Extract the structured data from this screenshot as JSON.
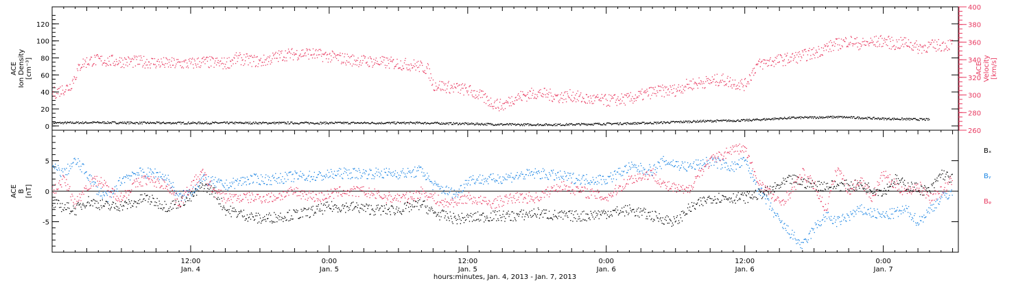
{
  "colors": {
    "density": "#000000",
    "velocity": "#e8385f",
    "bx": "#000000",
    "by": "#1a84e3",
    "bz": "#e8385f",
    "axis": "#000000"
  },
  "chart_data": [
    {
      "type": "scatter",
      "panel": "top",
      "xlabel": "hours:minutes, Jan.  4, 2013 - Jan.  7, 2013",
      "x_ticks": [
        {
          "hours": 12,
          "time": "12:00",
          "date": "Jan. 4"
        },
        {
          "hours": 24,
          "time": "0:00",
          "date": "Jan. 5"
        },
        {
          "hours": 36,
          "time": "12:00",
          "date": "Jan. 5"
        },
        {
          "hours": 48,
          "time": "0:00",
          "date": "Jan. 6"
        },
        {
          "hours": 60,
          "time": "12:00",
          "date": "Jan. 6"
        },
        {
          "hours": 72,
          "time": "0:00",
          "date": "Jan. 7"
        }
      ],
      "x_range_hours": [
        0,
        78.5
      ],
      "left_axis": {
        "label_lines": [
          "ACE",
          "Ion Density",
          "[cm⁻³]"
        ],
        "ylim": [
          -5,
          140
        ],
        "ticks": [
          0,
          20,
          40,
          60,
          80,
          100,
          120
        ]
      },
      "right_axis": {
        "label_lines": [
          "ACE",
          "Velocity",
          "[km/s]"
        ],
        "ylim": [
          260,
          400
        ],
        "ticks": [
          260,
          280,
          300,
          320,
          340,
          360,
          380,
          400
        ]
      },
      "series": [
        {
          "key": "density",
          "axis": "left",
          "points": [
            [
              0,
              4
            ],
            [
              4,
              4.5
            ],
            [
              8,
              4
            ],
            [
              12,
              4
            ],
            [
              16,
              4
            ],
            [
              20,
              4
            ],
            [
              24,
              4
            ],
            [
              28,
              4
            ],
            [
              32,
              4
            ],
            [
              36,
              3
            ],
            [
              40,
              2
            ],
            [
              44,
              2
            ],
            [
              48,
              3
            ],
            [
              52,
              4
            ],
            [
              56,
              6
            ],
            [
              60,
              7
            ],
            [
              64,
              10
            ],
            [
              68,
              11
            ],
            [
              72,
              9
            ],
            [
              76,
              8
            ]
          ]
        },
        {
          "key": "velocity",
          "axis": "right",
          "points": [
            [
              0,
              302
            ],
            [
              1.5,
              310
            ],
            [
              2.5,
              336
            ],
            [
              3.5,
              340
            ],
            [
              5,
              339
            ],
            [
              7,
              338
            ],
            [
              8,
              338
            ],
            [
              10,
              336
            ],
            [
              12,
              336
            ],
            [
              13,
              338
            ],
            [
              15,
              336
            ],
            [
              16,
              342
            ],
            [
              18,
              338
            ],
            [
              20,
              346
            ],
            [
              22,
              348
            ],
            [
              24,
              344
            ],
            [
              26,
              340
            ],
            [
              28,
              338
            ],
            [
              30,
              336
            ],
            [
              31.5,
              334
            ],
            [
              32.5,
              330
            ],
            [
              33,
              312
            ],
            [
              35,
              308
            ],
            [
              36,
              306
            ],
            [
              37,
              300
            ],
            [
              38,
              292
            ],
            [
              39,
              288
            ],
            [
              40,
              297
            ],
            [
              41,
              300
            ],
            [
              42,
              303
            ],
            [
              44,
              298
            ],
            [
              45,
              300
            ],
            [
              46,
              296
            ],
            [
              48,
              294
            ],
            [
              50,
              296
            ],
            [
              52,
              304
            ],
            [
              54,
              306
            ],
            [
              55,
              312
            ],
            [
              57,
              316
            ],
            [
              58,
              318
            ],
            [
              59,
              314
            ],
            [
              60,
              312
            ],
            [
              61,
              334
            ],
            [
              62,
              338
            ],
            [
              64,
              342
            ],
            [
              66,
              348
            ],
            [
              67,
              354
            ],
            [
              69,
              362
            ],
            [
              70,
              358
            ],
            [
              71,
              360
            ],
            [
              72,
              362
            ],
            [
              73,
              358
            ],
            [
              74,
              360
            ],
            [
              75,
              354
            ],
            [
              76,
              356
            ],
            [
              78,
              358
            ]
          ]
        }
      ]
    },
    {
      "type": "scatter",
      "panel": "bottom",
      "xlabel": "hours:minutes, Jan.  4, 2013 - Jan.  7, 2013",
      "x_range_hours": [
        0,
        78.5
      ],
      "left_axis": {
        "label_lines": [
          "ACE",
          "B",
          "[nT]"
        ],
        "ylim": [
          -10,
          10
        ],
        "ticks": [
          -5,
          0,
          5
        ]
      },
      "legend": [
        "Bₓ",
        "Bᵧ",
        "Bᵩ"
      ],
      "series": [
        {
          "key": "bx",
          "points": [
            [
              0,
              -2
            ],
            [
              2,
              -3
            ],
            [
              3,
              -1.5
            ],
            [
              5,
              -2.5
            ],
            [
              7,
              -2
            ],
            [
              8,
              -1
            ],
            [
              10,
              -2.5
            ],
            [
              12,
              -1
            ],
            [
              13,
              1
            ],
            [
              14,
              0
            ],
            [
              15,
              -3
            ],
            [
              17,
              -4
            ],
            [
              18,
              -4.5
            ],
            [
              20,
              -4
            ],
            [
              22,
              -3.5
            ],
            [
              24,
              -2.5
            ],
            [
              26,
              -2.5
            ],
            [
              28,
              -3
            ],
            [
              30,
              -3
            ],
            [
              32,
              -2
            ],
            [
              33,
              -3.5
            ],
            [
              35,
              -4.5
            ],
            [
              38,
              -4
            ],
            [
              40,
              -4
            ],
            [
              42,
              -3.5
            ],
            [
              44,
              -4
            ],
            [
              46,
              -4
            ],
            [
              48,
              -3.5
            ],
            [
              50,
              -3
            ],
            [
              52,
              -4
            ],
            [
              54,
              -5
            ],
            [
              55,
              -3
            ],
            [
              57,
              -1
            ],
            [
              58,
              -1
            ],
            [
              60,
              -1
            ],
            [
              62,
              0
            ],
            [
              63,
              1
            ],
            [
              64,
              2
            ],
            [
              66,
              1
            ],
            [
              68,
              1
            ],
            [
              70,
              1
            ],
            [
              72,
              0
            ],
            [
              73,
              2
            ],
            [
              74,
              1
            ],
            [
              76,
              0
            ],
            [
              77,
              3
            ],
            [
              78,
              2
            ]
          ]
        },
        {
          "key": "by",
          "points": [
            [
              0,
              4
            ],
            [
              1,
              3
            ],
            [
              2,
              5
            ],
            [
              3,
              3
            ],
            [
              4,
              0
            ],
            [
              5,
              -1
            ],
            [
              6,
              2
            ],
            [
              7,
              3
            ],
            [
              9,
              3
            ],
            [
              10,
              2
            ],
            [
              11,
              -1
            ],
            [
              12,
              0
            ],
            [
              13,
              2
            ],
            [
              15,
              1
            ],
            [
              17,
              2
            ],
            [
              19,
              2
            ],
            [
              21,
              2.5
            ],
            [
              23,
              2.5
            ],
            [
              25,
              3
            ],
            [
              27,
              3
            ],
            [
              29,
              3
            ],
            [
              31,
              3
            ],
            [
              32,
              3.5
            ],
            [
              33,
              1
            ],
            [
              35,
              -0.5
            ],
            [
              36,
              2
            ],
            [
              38,
              2
            ],
            [
              40,
              2.5
            ],
            [
              42,
              3
            ],
            [
              44,
              2.5
            ],
            [
              46,
              2
            ],
            [
              48,
              2
            ],
            [
              50,
              4
            ],
            [
              52,
              3.5
            ],
            [
              53,
              5
            ],
            [
              55,
              4
            ],
            [
              57,
              5
            ],
            [
              59,
              4
            ],
            [
              60,
              5
            ],
            [
              61,
              1
            ],
            [
              62,
              -2
            ],
            [
              63,
              -5
            ],
            [
              64,
              -7
            ],
            [
              65,
              -9
            ],
            [
              66,
              -6
            ],
            [
              67,
              -4
            ],
            [
              68,
              -5
            ],
            [
              70,
              -3
            ],
            [
              72,
              -4
            ],
            [
              74,
              -3
            ],
            [
              75,
              -5
            ],
            [
              76,
              -3
            ],
            [
              77,
              -1
            ],
            [
              78,
              0
            ]
          ]
        },
        {
          "key": "bz",
          "points": [
            [
              0,
              0
            ],
            [
              1,
              2
            ],
            [
              2,
              -2
            ],
            [
              3,
              1
            ],
            [
              4,
              2
            ],
            [
              5,
              0
            ],
            [
              6,
              -1
            ],
            [
              7,
              1
            ],
            [
              8,
              2
            ],
            [
              10,
              1
            ],
            [
              11,
              -2
            ],
            [
              12,
              1
            ],
            [
              13,
              3
            ],
            [
              14,
              0
            ],
            [
              15,
              -1
            ],
            [
              17,
              -1
            ],
            [
              19,
              -1
            ],
            [
              21,
              0
            ],
            [
              23,
              -1
            ],
            [
              25,
              0
            ],
            [
              27,
              0
            ],
            [
              29,
              -1
            ],
            [
              31,
              -1
            ],
            [
              32,
              0
            ],
            [
              34,
              -2
            ],
            [
              36,
              -1
            ],
            [
              38,
              -2
            ],
            [
              40,
              -1
            ],
            [
              42,
              -1
            ],
            [
              44,
              1
            ],
            [
              46,
              0
            ],
            [
              48,
              -1
            ],
            [
              50,
              2
            ],
            [
              52,
              3
            ],
            [
              53,
              1
            ],
            [
              55,
              0
            ],
            [
              56,
              3
            ],
            [
              57,
              5
            ],
            [
              59,
              7
            ],
            [
              60,
              7
            ],
            [
              61,
              2
            ],
            [
              62,
              0
            ],
            [
              63,
              -2
            ],
            [
              64,
              0
            ],
            [
              65,
              3
            ],
            [
              66,
              1
            ],
            [
              67,
              -3
            ],
            [
              68,
              4
            ],
            [
              69,
              0
            ],
            [
              70,
              2
            ],
            [
              71,
              -1
            ],
            [
              72,
              3
            ],
            [
              73,
              1
            ],
            [
              74,
              0
            ],
            [
              75,
              1
            ],
            [
              76,
              -1
            ],
            [
              77,
              0
            ],
            [
              78,
              2
            ]
          ]
        }
      ]
    }
  ]
}
